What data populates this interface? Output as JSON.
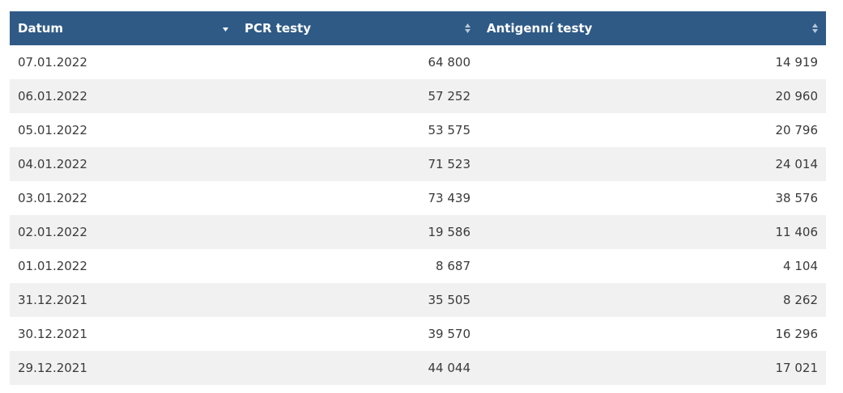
{
  "table": {
    "columns": [
      {
        "label": "Datum",
        "sort_icon": "sort-desc-icon"
      },
      {
        "label": "PCR testy",
        "sort_icon": "sort-both-icon"
      },
      {
        "label": "Antigenní testy",
        "sort_icon": "sort-both-icon"
      }
    ],
    "rows": [
      {
        "date": "07.01.2022",
        "pcr": "64 800",
        "antigen": "14 919"
      },
      {
        "date": "06.01.2022",
        "pcr": "57 252",
        "antigen": "20 960"
      },
      {
        "date": "05.01.2022",
        "pcr": "53 575",
        "antigen": "20 796"
      },
      {
        "date": "04.01.2022",
        "pcr": "71 523",
        "antigen": "24 014"
      },
      {
        "date": "03.01.2022",
        "pcr": "73 439",
        "antigen": "38 576"
      },
      {
        "date": "02.01.2022",
        "pcr": "19 586",
        "antigen": "11 406"
      },
      {
        "date": "01.01.2022",
        "pcr": "8 687",
        "antigen": "4 104"
      },
      {
        "date": "31.12.2021",
        "pcr": "35 505",
        "antigen": "8 262"
      },
      {
        "date": "30.12.2021",
        "pcr": "39 570",
        "antigen": "16 296"
      },
      {
        "date": "29.12.2021",
        "pcr": "44 044",
        "antigen": "17 021"
      }
    ]
  },
  "colors": {
    "header_bg": "#2f5a86",
    "header_text": "#ffffff",
    "row_alt": "#f1f1f1",
    "cell_text": "#3a3a3a"
  }
}
